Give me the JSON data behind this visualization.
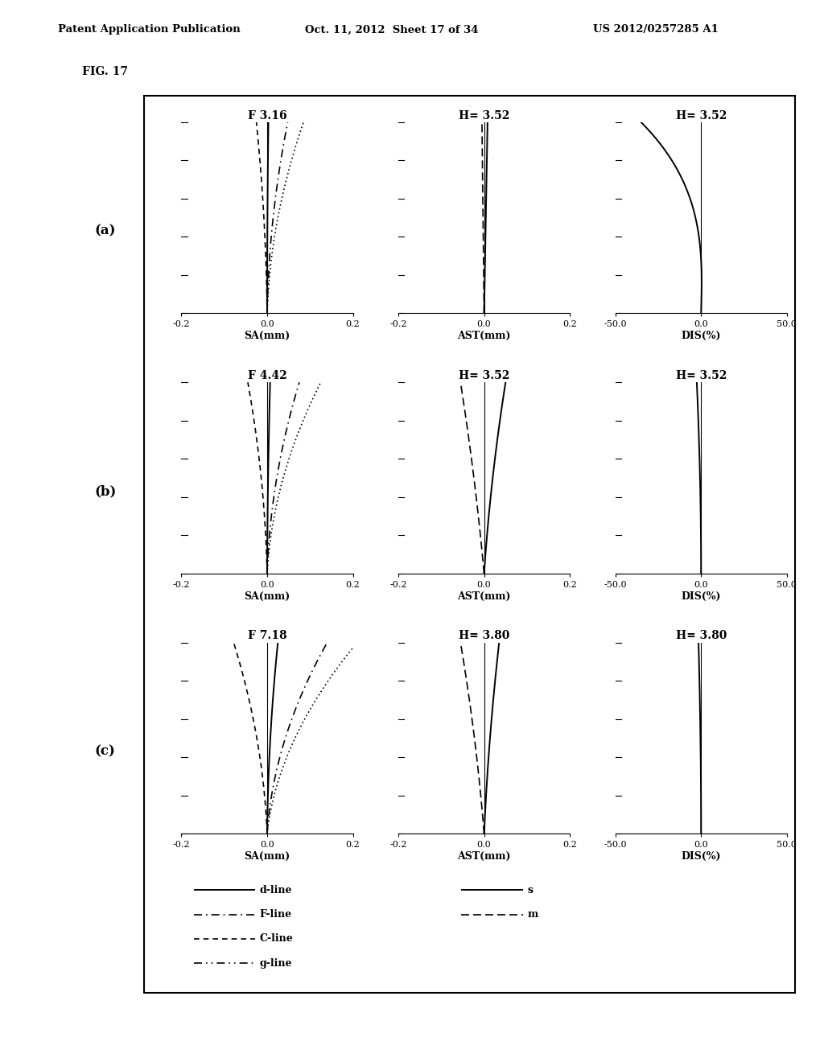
{
  "header_left": "Patent Application Publication",
  "header_center": "Oct. 11, 2012  Sheet 17 of 34",
  "header_right": "US 2012/0257285 A1",
  "fig_label": "FIG. 17",
  "rows": [
    {
      "row_label": "(a)",
      "sa_title": "F 3.16",
      "ast_title": "H= 3.52",
      "dis_title": "H= 3.52",
      "sa_xlim": [
        -0.2,
        0.2
      ],
      "ast_xlim": [
        -0.2,
        0.2
      ],
      "dis_xlim": [
        -50.0,
        50.0
      ],
      "sa_xlabel": "SA(mm)",
      "ast_xlabel": "AST(mm)",
      "dis_xlabel": "DIS(%)"
    },
    {
      "row_label": "(b)",
      "sa_title": "F 4.42",
      "ast_title": "H= 3.52",
      "dis_title": "H= 3.52",
      "sa_xlim": [
        -0.2,
        0.2
      ],
      "ast_xlim": [
        -0.2,
        0.2
      ],
      "dis_xlim": [
        -50.0,
        50.0
      ],
      "sa_xlabel": "SA(mm)",
      "ast_xlabel": "AST(mm)",
      "dis_xlabel": "DIS(%)"
    },
    {
      "row_label": "(c)",
      "sa_title": "F 7.18",
      "ast_title": "H= 3.80",
      "dis_title": "H= 3.80",
      "sa_xlim": [
        -0.2,
        0.2
      ],
      "ast_xlim": [
        -0.2,
        0.2
      ],
      "dis_xlim": [
        -50.0,
        50.0
      ],
      "sa_xlabel": "SA(mm)",
      "ast_xlabel": "AST(mm)",
      "dis_xlabel": "DIS(%)"
    }
  ],
  "background_color": "#ffffff"
}
